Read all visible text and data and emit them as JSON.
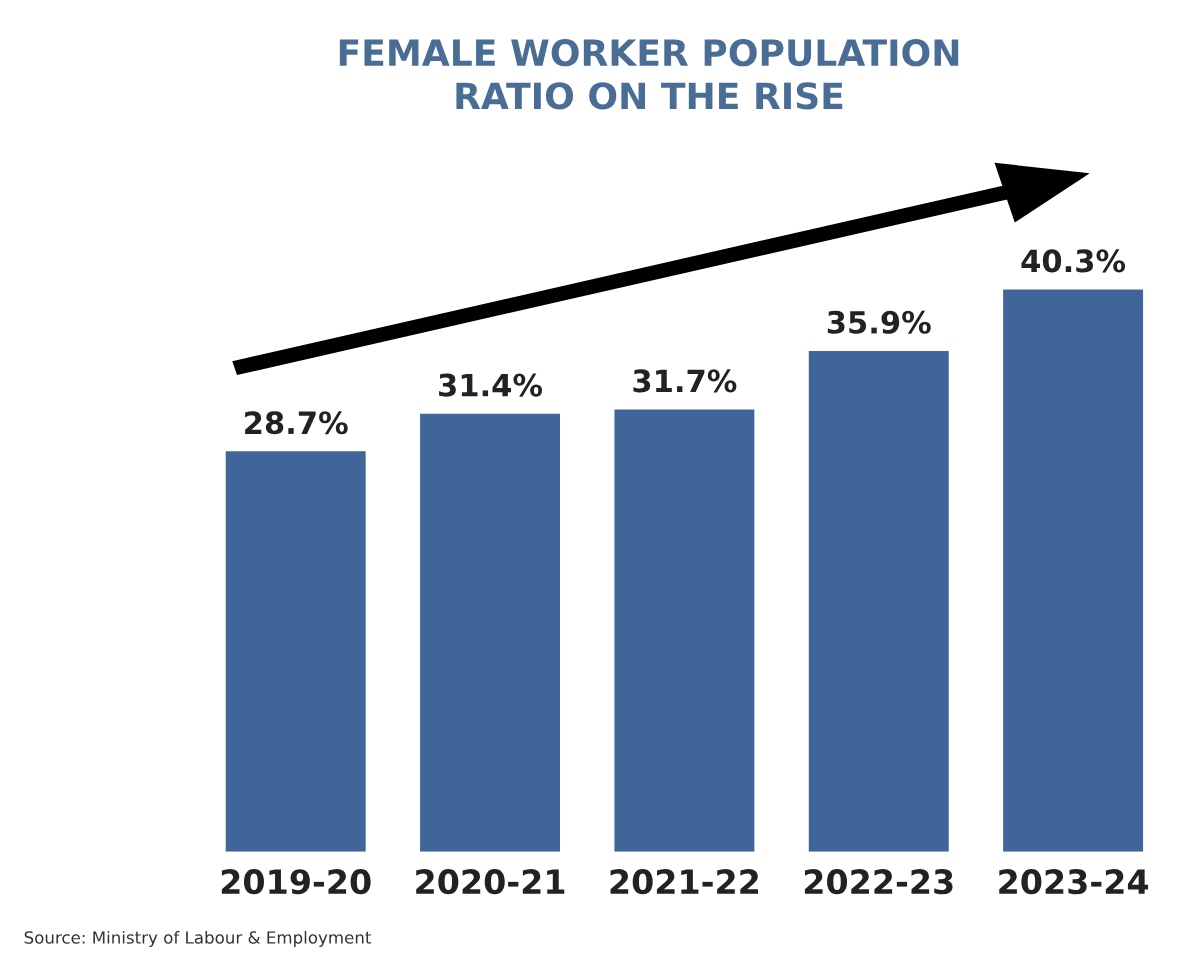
{
  "chart_data": {
    "type": "bar",
    "title": "FEMALE WORKER POPULATION\nRATIO ON THE RISE",
    "categories": [
      "2019-20",
      "2020-21",
      "2021-22",
      "2022-23",
      "2023-24"
    ],
    "values": [
      28.7,
      31.4,
      31.7,
      35.9,
      40.3
    ],
    "color": "#3f659b",
    "value_labels": [
      "28.7%",
      "31.4%",
      "31.7%",
      "35.9%",
      "40.3%"
    ],
    "tick_labels": "x",
    "grid": false,
    "annotations": [
      "Source: Ministry of Labour & Employment"
    ]
  }
}
